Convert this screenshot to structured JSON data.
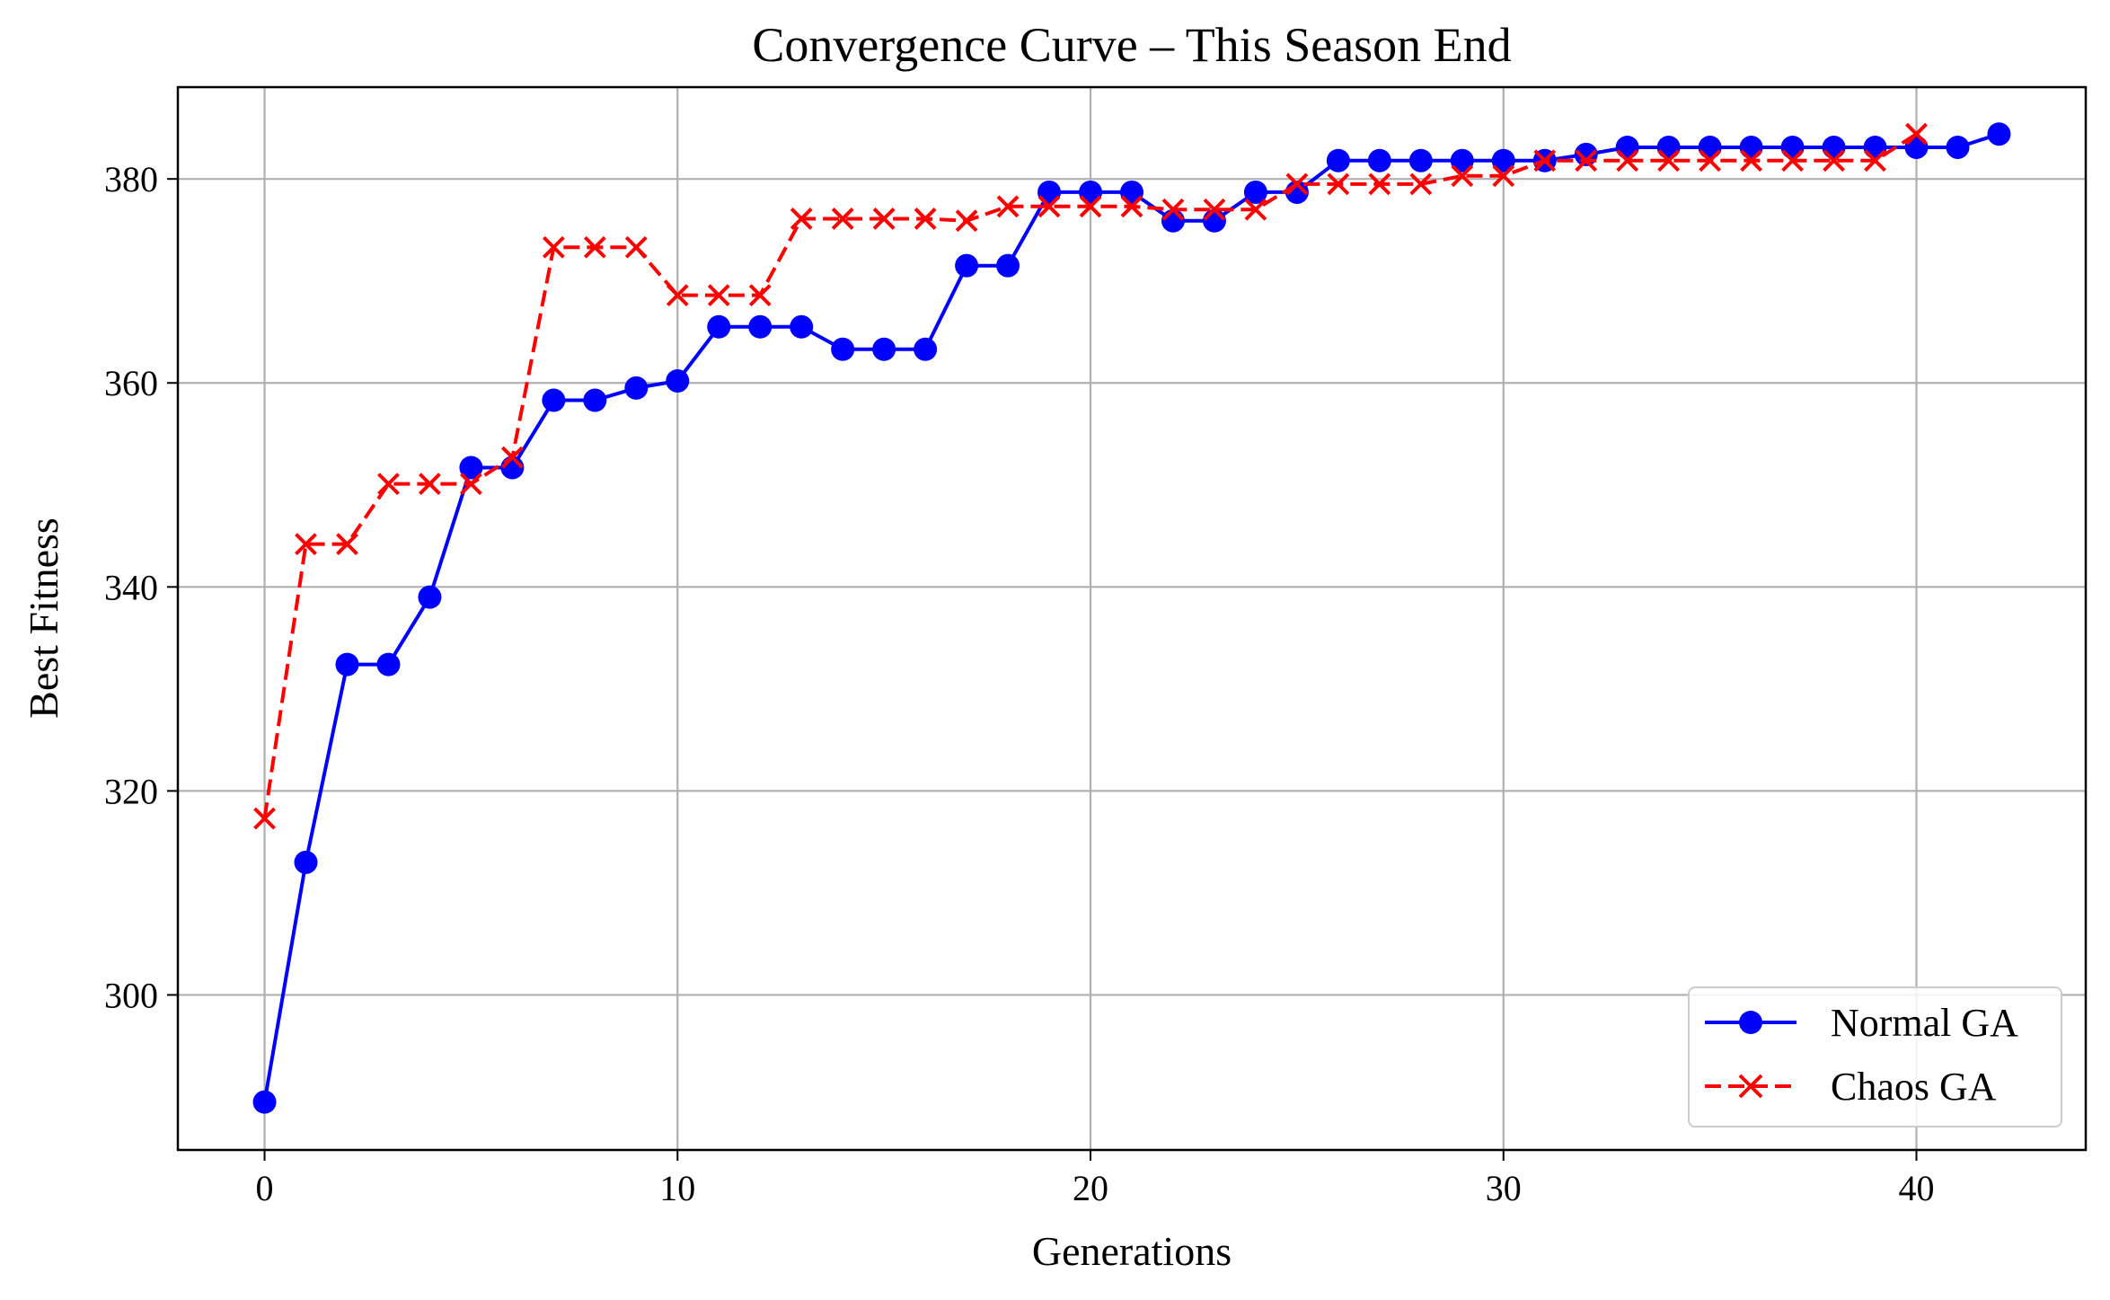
{
  "chart_data": {
    "type": "line",
    "title": "Convergence Curve – This Season End",
    "xlabel": "Generations",
    "ylabel": "Best Fitness",
    "xlim": [
      -2.1,
      44.1
    ],
    "ylim": [
      284.8,
      389.0
    ],
    "xticks": [
      0,
      10,
      20,
      30,
      40
    ],
    "yticks": [
      300,
      320,
      340,
      360,
      380
    ],
    "grid": true,
    "legend_position": "lower-right",
    "series": [
      {
        "name": "Normal GA",
        "color": "#0000ff",
        "line_style": "solid",
        "marker": "circle",
        "x": [
          0,
          1,
          2,
          3,
          4,
          5,
          6,
          7,
          8,
          9,
          10,
          11,
          12,
          13,
          14,
          15,
          16,
          17,
          18,
          19,
          20,
          21,
          22,
          23,
          24,
          25,
          26,
          27,
          28,
          29,
          30,
          31,
          32,
          33,
          34,
          35,
          36,
          37,
          38,
          39,
          40,
          41,
          42
        ],
        "values": [
          289.5,
          313.0,
          332.4,
          332.4,
          339.0,
          351.7,
          351.7,
          358.3,
          358.3,
          359.5,
          360.2,
          365.5,
          365.5,
          365.5,
          363.3,
          363.3,
          363.3,
          371.5,
          371.5,
          378.7,
          378.7,
          378.7,
          375.9,
          375.9,
          378.7,
          378.7,
          381.8,
          381.8,
          381.8,
          381.8,
          381.8,
          381.8,
          382.4,
          383.1,
          383.1,
          383.1,
          383.1,
          383.1,
          383.1,
          383.1,
          383.1,
          383.1,
          384.4
        ]
      },
      {
        "name": "Chaos GA",
        "color": "#ff0000",
        "line_style": "dashed",
        "marker": "x",
        "x": [
          0,
          1,
          2,
          3,
          4,
          5,
          6,
          7,
          8,
          9,
          10,
          11,
          12,
          13,
          14,
          15,
          16,
          17,
          18,
          19,
          20,
          21,
          22,
          23,
          24,
          25,
          26,
          27,
          28,
          29,
          30,
          31,
          32,
          33,
          34,
          35,
          36,
          37,
          38,
          39,
          40
        ],
        "values": [
          317.3,
          344.2,
          344.2,
          350.1,
          350.1,
          350.1,
          352.7,
          373.3,
          373.3,
          373.3,
          368.6,
          368.6,
          368.6,
          376.1,
          376.1,
          376.1,
          376.1,
          375.9,
          377.3,
          377.3,
          377.3,
          377.3,
          377.0,
          377.0,
          377.0,
          379.5,
          379.5,
          379.5,
          379.5,
          380.3,
          380.3,
          381.8,
          381.8,
          381.8,
          381.8,
          381.8,
          381.8,
          381.8,
          381.8,
          381.8,
          384.4
        ]
      }
    ]
  }
}
